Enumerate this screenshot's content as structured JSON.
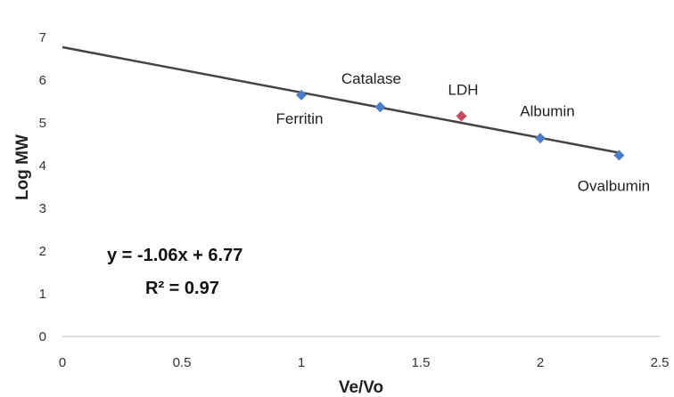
{
  "chart_data": {
    "type": "scatter",
    "xlabel": "Ve/Vo",
    "ylabel": "Log MW",
    "xlim": [
      0,
      2.5
    ],
    "ylim": [
      0,
      7.5
    ],
    "x_ticks": [
      0,
      0.5,
      1,
      1.5,
      2,
      2.5
    ],
    "x_tick_labels": [
      "0",
      "0.5",
      "1",
      "1.5",
      "2",
      "2.5"
    ],
    "y_ticks": [
      0,
      1,
      2,
      3,
      4,
      5,
      6,
      7
    ],
    "y_tick_labels": [
      "0",
      "1",
      "2",
      "3",
      "4",
      "5",
      "6",
      "7"
    ],
    "grid": false,
    "points": [
      {
        "label": "Ferritin",
        "x": 1.0,
        "y": 5.65,
        "color": "#4a7fc8"
      },
      {
        "label": "Catalase",
        "x": 1.33,
        "y": 5.37,
        "color": "#4a7fc8"
      },
      {
        "label": "LDH",
        "x": 1.67,
        "y": 5.16,
        "color": "#c84a5e"
      },
      {
        "label": "Albumin",
        "x": 2.0,
        "y": 4.64,
        "color": "#4a7fc8"
      },
      {
        "label": "Ovalbumin",
        "x": 2.33,
        "y": 4.24,
        "color": "#4a7fc8"
      }
    ],
    "trendline": {
      "slope": -1.06,
      "intercept": 6.77,
      "x_range": [
        0,
        2.33
      ],
      "color": "#444444"
    },
    "equation": "y = -1.06x + 6.77",
    "r_squared": "R² = 0.97"
  }
}
